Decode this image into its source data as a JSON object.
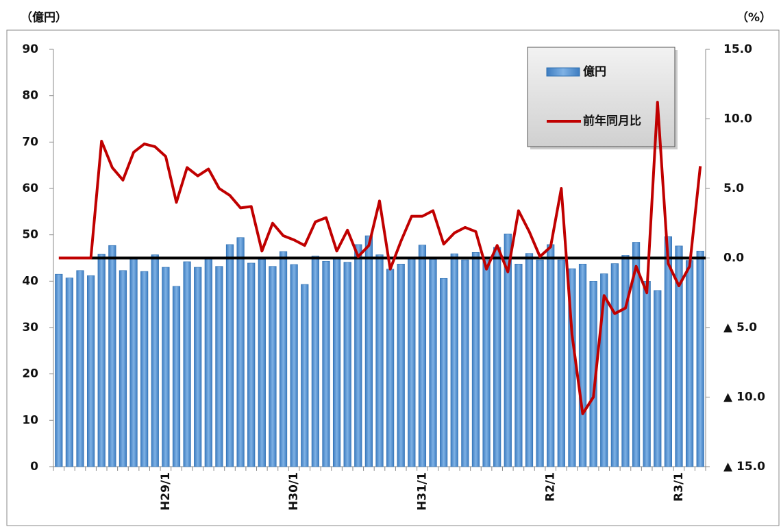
{
  "chart_data": {
    "type": "bar-line",
    "y_label": "（億円）",
    "y2_label": "（%）",
    "categories": [
      null,
      null,
      null,
      null,
      null,
      null,
      null,
      null,
      null,
      null,
      "H29/1",
      null,
      null,
      null,
      null,
      null,
      null,
      null,
      null,
      null,
      null,
      null,
      "H30/1",
      null,
      null,
      null,
      null,
      null,
      null,
      null,
      null,
      null,
      null,
      null,
      "H31/1",
      null,
      null,
      null,
      null,
      null,
      null,
      null,
      null,
      null,
      null,
      null,
      "R2/1",
      null,
      null,
      null,
      null,
      null,
      null,
      null,
      null,
      null,
      null,
      null,
      "R3/1",
      null,
      null
    ],
    "series": [
      {
        "name": "億円",
        "type": "bar",
        "color": "#5b9bd5",
        "values": [
          41.5,
          40.7,
          42.3,
          41.2,
          45.8,
          47.7,
          42.3,
          44.8,
          42.1,
          45.7,
          43.0,
          38.9,
          44.2,
          43.0,
          44.9,
          43.2,
          47.9,
          49.4,
          43.9,
          44.7,
          43.2,
          46.4,
          43.6,
          39.3,
          45.4,
          44.3,
          45.0,
          44.1,
          47.9,
          49.8,
          45.7,
          42.6,
          43.7,
          45.0,
          47.8,
          44.7,
          40.6,
          45.9,
          44.6,
          46.2,
          44.6,
          47.3,
          50.2,
          43.7,
          46.0,
          44.6,
          47.9,
          44.6,
          42.7,
          43.7,
          40.0,
          41.6,
          43.8,
          45.6,
          48.4,
          40.0,
          38.0,
          49.6,
          47.6,
          44.5,
          46.5
        ]
      },
      {
        "name": "前年同月比",
        "type": "line",
        "axis": "y2",
        "color": "#c00000",
        "values": [
          0,
          0,
          0,
          0,
          8.4,
          6.5,
          5.6,
          7.6,
          8.2,
          8.0,
          7.3,
          4.0,
          6.5,
          5.9,
          6.4,
          5.0,
          4.5,
          3.6,
          3.7,
          0.5,
          2.5,
          1.6,
          1.3,
          0.9,
          2.6,
          2.9,
          0.5,
          2.0,
          0.1,
          0.9,
          4.1,
          -0.8,
          1.2,
          3.0,
          3.0,
          3.4,
          1.0,
          1.8,
          2.2,
          1.9,
          -0.8,
          0.9,
          -1.0,
          3.4,
          1.9,
          0.1,
          0.8,
          5.0,
          -5.5,
          -11.2,
          -10.0,
          -2.7,
          -4.0,
          -3.6,
          -0.6,
          -2.5,
          11.2,
          -0.4,
          -2.0,
          -0.6,
          6.6
        ]
      }
    ],
    "ylim": [
      0,
      90
    ],
    "yticks": [
      0,
      10,
      20,
      30,
      40,
      50,
      60,
      70,
      80,
      90
    ],
    "y2lim": [
      -15,
      15
    ],
    "y2ticks": [
      {
        "value": -15,
        "label": "▲ 15.0"
      },
      {
        "value": -10,
        "label": "▲ 10.0"
      },
      {
        "value": -5,
        "label": "▲ 5.0"
      },
      {
        "value": 0,
        "label": "0.0"
      },
      {
        "value": 5,
        "label": "5.0"
      },
      {
        "value": 10,
        "label": "10.0"
      },
      {
        "value": 15,
        "label": "15.0"
      }
    ],
    "y2_zero_line": true,
    "grid": false,
    "legend": "upper right"
  }
}
